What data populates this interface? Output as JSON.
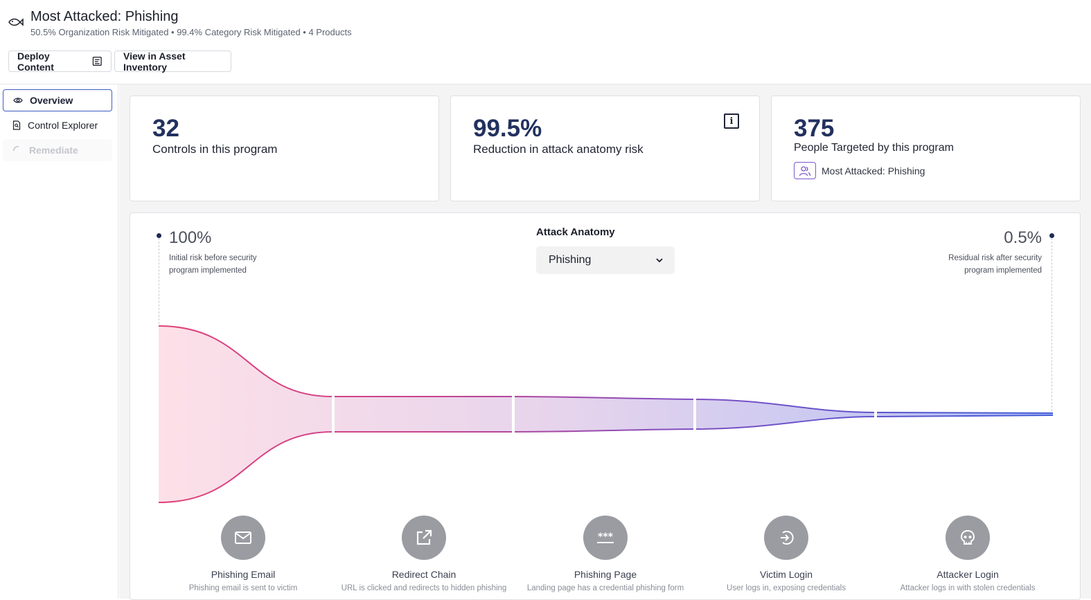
{
  "header": {
    "title": "Most Attacked: Phishing",
    "subtitle": "50.5% Organization Risk Mitigated • 99.4% Category Risk Mitigated • 4 Products",
    "deploy_label": "Deploy Content",
    "asset_label": "View in Asset Inventory"
  },
  "sidebar": {
    "items": [
      {
        "label": "Overview",
        "icon": "eye-icon",
        "state": "active"
      },
      {
        "label": "Control Explorer",
        "icon": "document-search-icon",
        "state": "normal"
      },
      {
        "label": "Remediate",
        "icon": "loading-spinner-icon",
        "state": "disabled"
      }
    ]
  },
  "cards": [
    {
      "value": "32",
      "label": "Controls in this program"
    },
    {
      "value": "99.5%",
      "label": "Reduction in attack anatomy risk",
      "icon": "info-icon"
    },
    {
      "value": "375",
      "label": "People Targeted by this program",
      "tag": "Most Attacked: Phishing",
      "tag_icon": "people-icon"
    }
  ],
  "anatomy": {
    "label": "Attack Anatomy",
    "selected": "Phishing",
    "initial_pct": "100%",
    "initial_note": "Initial risk before security program implemented",
    "residual_pct": "0.5%",
    "residual_note": "Residual risk after security program implemented",
    "stages": [
      {
        "name": "Phishing Email",
        "desc": "Phishing email is sent to victim",
        "icon": "envelope-icon"
      },
      {
        "name": "Redirect Chain",
        "desc": "URL is clicked and redirects to hidden phishing",
        "icon": "external-link-icon"
      },
      {
        "name": "Phishing Page",
        "desc": "Landing page has a credential phishing form",
        "icon": "password-field-icon"
      },
      {
        "name": "Victim Login",
        "desc": "User logs in, exposing credentials",
        "icon": "login-icon"
      },
      {
        "name": "Attacker Login",
        "desc": "Attacker logs in with stolen credentials",
        "icon": "skull-icon"
      }
    ],
    "colors": {
      "start": "#d9407a",
      "end": "#3f5bd8",
      "fill_start": "#fde0e8",
      "fill_end": "#b3c0f5"
    }
  }
}
